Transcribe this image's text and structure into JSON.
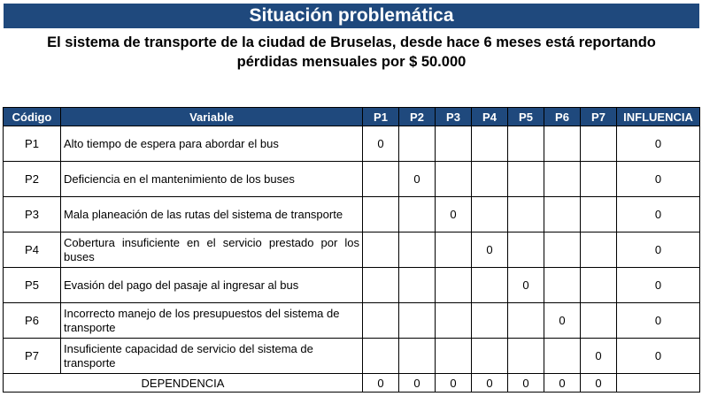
{
  "title": "Situación problemática",
  "subtitle_line1": "El sistema de transporte de la ciudad de Bruselas, desde hace 6 meses está reportando",
  "subtitle_line2": "pérdidas mensuales por $ 50.000",
  "colors": {
    "header_bg": "#1f497d",
    "header_text": "#ffffff"
  },
  "table": {
    "headers": [
      "Código",
      "Variable",
      "P1",
      "P2",
      "P3",
      "P4",
      "P5",
      "P6",
      "P7",
      "INFLUENCIA"
    ],
    "rows": [
      {
        "code": "P1",
        "variable": "Alto tiempo de espera para abordar el bus",
        "cells": [
          "0",
          "",
          "",
          "",
          "",
          "",
          ""
        ],
        "influencia": "0"
      },
      {
        "code": "P2",
        "variable": "Deficiencia en el mantenimiento de los buses",
        "cells": [
          "",
          "0",
          "",
          "",
          "",
          "",
          ""
        ],
        "influencia": "0"
      },
      {
        "code": "P3",
        "variable": "Mala planeación de las rutas del sistema de transporte",
        "cells": [
          "",
          "",
          "0",
          "",
          "",
          "",
          ""
        ],
        "influencia": "0"
      },
      {
        "code": "P4",
        "variable": "Cobertura insuficiente en el servicio prestado por los buses",
        "cells": [
          "",
          "",
          "",
          "0",
          "",
          "",
          ""
        ],
        "influencia": "0"
      },
      {
        "code": "P5",
        "variable": "Evasión del pago del pasaje al ingresar al bus",
        "cells": [
          "",
          "",
          "",
          "",
          "0",
          "",
          ""
        ],
        "influencia": "0"
      },
      {
        "code": "P6",
        "variable": "Incorrecto manejo de los presupuestos del sistema de transporte",
        "cells": [
          "",
          "",
          "",
          "",
          "",
          "0",
          ""
        ],
        "influencia": "0"
      },
      {
        "code": "P7",
        "variable": "Insuficiente capacidad de servicio del sistema de transporte",
        "cells": [
          "",
          "",
          "",
          "",
          "",
          "",
          "0"
        ],
        "influencia": "0"
      }
    ],
    "dependencia_label": "DEPENDENCIA",
    "dependencia_values": [
      "0",
      "0",
      "0",
      "0",
      "0",
      "0",
      "0"
    ]
  }
}
